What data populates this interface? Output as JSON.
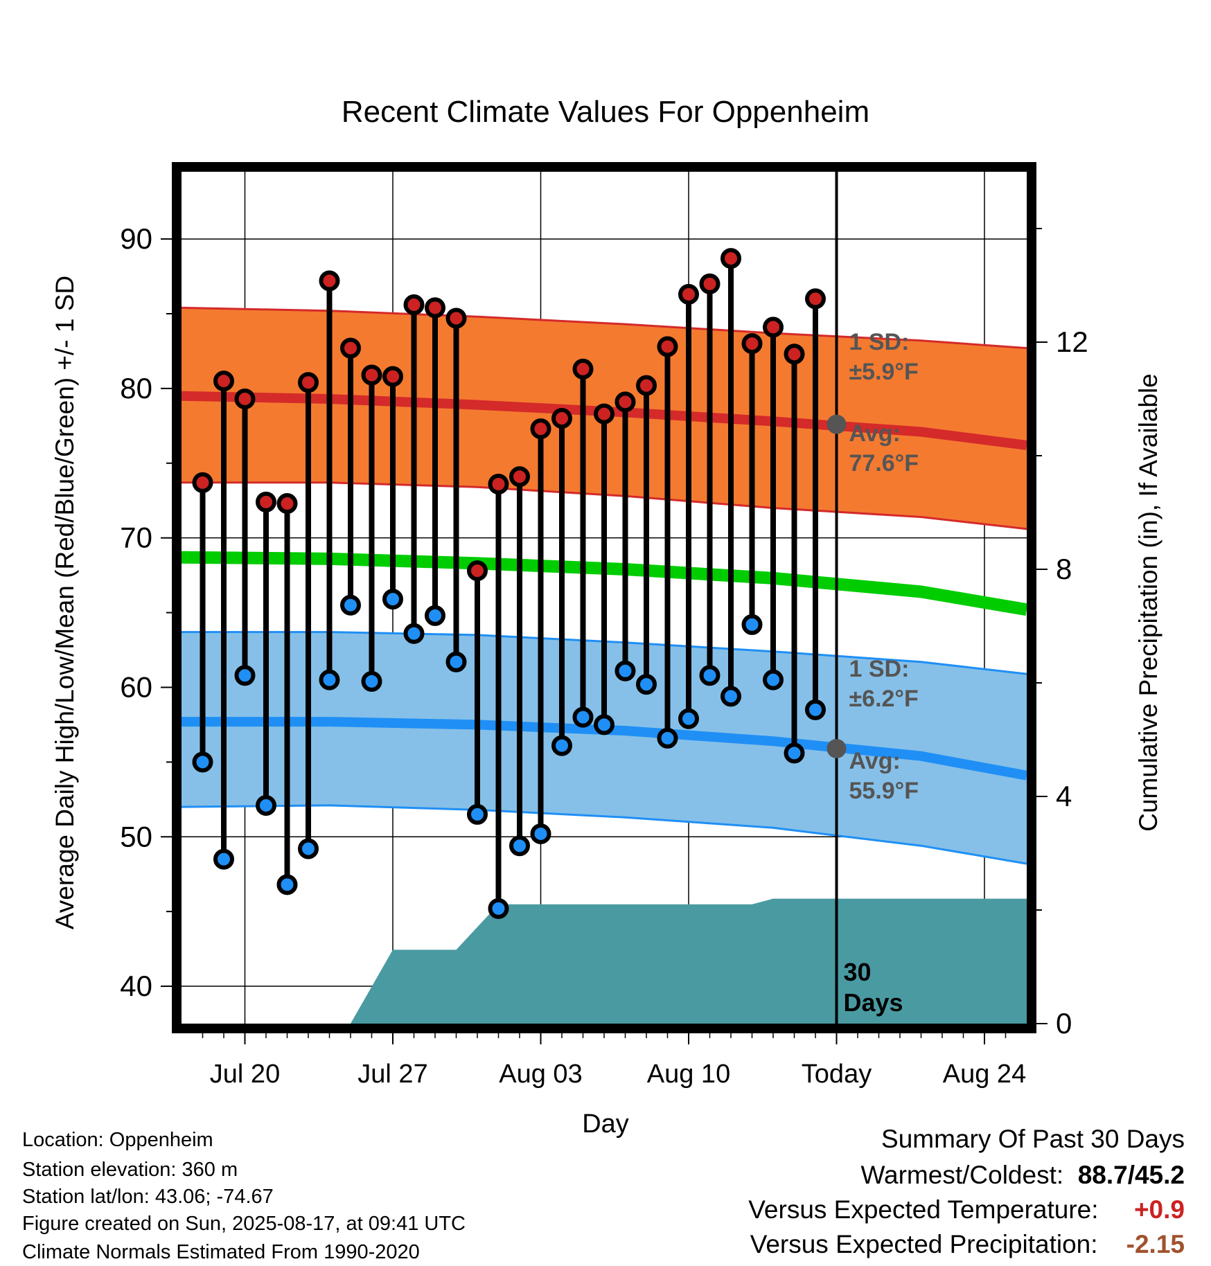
{
  "chart_data": {
    "type": "line",
    "title": "Recent Climate Values For Oppenheim",
    "xlabel": "Day",
    "ylabel": "Average Daily High/Low/Mean (Red/Blue/Green) +/- 1 SD",
    "y2label": "Cumulative Precipitation (in), If Available",
    "x_tick_labels": [
      "Jul 20",
      "Jul 27",
      "Aug 03",
      "Aug 10",
      "Today",
      "Aug 24"
    ],
    "x_tick_dates": [
      "2025-07-20",
      "2025-07-27",
      "2025-08-03",
      "2025-08-10",
      "2025-08-17",
      "2025-08-24"
    ],
    "xlim": [
      "2025-07-17",
      "2025-08-26"
    ],
    "ylim": [
      37.5,
      94.5
    ],
    "y_ticks": [
      40,
      50,
      60,
      70,
      80,
      90
    ],
    "y2lim": [
      0,
      15
    ],
    "y2_ticks": [
      0,
      4,
      8,
      12
    ],
    "grid": true,
    "today": "2025-08-17",
    "colors": {
      "high_band": "#f47a30",
      "high_line": "#d42a2a",
      "low_band": "#86c0e8",
      "low_line": "#1f8ff5",
      "mean_line": "#00cc00",
      "precip": "#4a9aa2",
      "high_dot": "#cc2222",
      "low_dot": "#1f8ff5",
      "today_marker": "#555555",
      "sd_label": "#555555"
    },
    "dates": [
      "2025-07-18",
      "2025-07-19",
      "2025-07-20",
      "2025-07-21",
      "2025-07-22",
      "2025-07-23",
      "2025-07-24",
      "2025-07-25",
      "2025-07-26",
      "2025-07-27",
      "2025-07-28",
      "2025-07-29",
      "2025-07-30",
      "2025-07-31",
      "2025-08-01",
      "2025-08-02",
      "2025-08-03",
      "2025-08-04",
      "2025-08-05",
      "2025-08-06",
      "2025-08-07",
      "2025-08-08",
      "2025-08-09",
      "2025-08-10",
      "2025-08-11",
      "2025-08-12",
      "2025-08-13",
      "2025-08-14",
      "2025-08-15",
      "2025-08-16"
    ],
    "highs": [
      73.7,
      80.5,
      79.3,
      72.4,
      72.3,
      80.4,
      87.2,
      82.7,
      80.9,
      80.8,
      85.6,
      85.4,
      84.7,
      67.8,
      73.6,
      74.1,
      77.3,
      78.0,
      81.3,
      78.3,
      79.1,
      80.2,
      82.8,
      86.3,
      87.0,
      88.7,
      83.0,
      84.1,
      82.3,
      86.0
    ],
    "lows": [
      55.0,
      48.5,
      60.8,
      52.1,
      46.8,
      49.2,
      60.5,
      65.5,
      60.4,
      65.9,
      63.6,
      64.8,
      61.7,
      51.5,
      45.2,
      49.4,
      50.2,
      56.1,
      58.0,
      57.5,
      61.1,
      60.2,
      56.6,
      57.9,
      60.8,
      59.4,
      64.2,
      60.5,
      55.6,
      58.5
    ],
    "normals": {
      "dates": [
        "2025-07-17",
        "2025-07-24",
        "2025-07-31",
        "2025-08-07",
        "2025-08-14",
        "2025-08-21",
        "2025-08-26"
      ],
      "high_mean": [
        79.5,
        79.3,
        78.9,
        78.4,
        77.8,
        77.1,
        76.2
      ],
      "high_upper": [
        85.4,
        85.2,
        84.8,
        84.3,
        83.7,
        83.2,
        82.7
      ],
      "high_lower": [
        73.7,
        73.7,
        73.4,
        72.8,
        72.0,
        71.4,
        70.6
      ],
      "mean": [
        68.7,
        68.6,
        68.3,
        67.9,
        67.3,
        66.4,
        65.2
      ],
      "low_mean": [
        57.7,
        57.7,
        57.5,
        57.1,
        56.4,
        55.4,
        54.1
      ],
      "low_upper": [
        63.7,
        63.7,
        63.5,
        63.0,
        62.4,
        61.7,
        60.9
      ],
      "low_lower": [
        52.0,
        52.1,
        51.8,
        51.3,
        50.6,
        49.4,
        48.2
      ]
    },
    "precip": {
      "dates": [
        "2025-07-17",
        "2025-07-25",
        "2025-07-27",
        "2025-07-30",
        "2025-08-01",
        "2025-08-13",
        "2025-08-14",
        "2025-08-26"
      ],
      "values": [
        0,
        0,
        1.3,
        1.3,
        2.1,
        2.1,
        2.2,
        2.2
      ]
    },
    "annotations": {
      "high_sd_label": "1 SD:",
      "high_sd_value": "±5.9°F",
      "high_avg_label": "Avg:",
      "high_avg_value": "77.6°F",
      "low_sd_label": "1 SD:",
      "low_sd_value": "±6.2°F",
      "low_avg_label": "Avg:",
      "low_avg_value": "55.9°F",
      "precip_label_1": "30",
      "precip_label_2": "Days"
    },
    "today_high_avg": 77.6,
    "today_low_avg": 55.9
  },
  "info": {
    "location": "Location: Oppenheim",
    "elevation": "Station elevation: 360 m",
    "latlon": "Station lat/lon: 43.06; -74.67",
    "created": "Figure created on Sun, 2025-08-17, at 09:41 UTC",
    "normals": "Climate Normals Estimated From 1990-2020"
  },
  "summary": {
    "title": "Summary Of Past 30 Days",
    "warm_cold_label": "Warmest/Coldest:",
    "warm_cold_value": "88.7/45.2",
    "temp_label": "Versus Expected Temperature:",
    "temp_value": "+0.9",
    "precip_label": "Versus Expected Precipitation:",
    "precip_value": "-2.15"
  }
}
